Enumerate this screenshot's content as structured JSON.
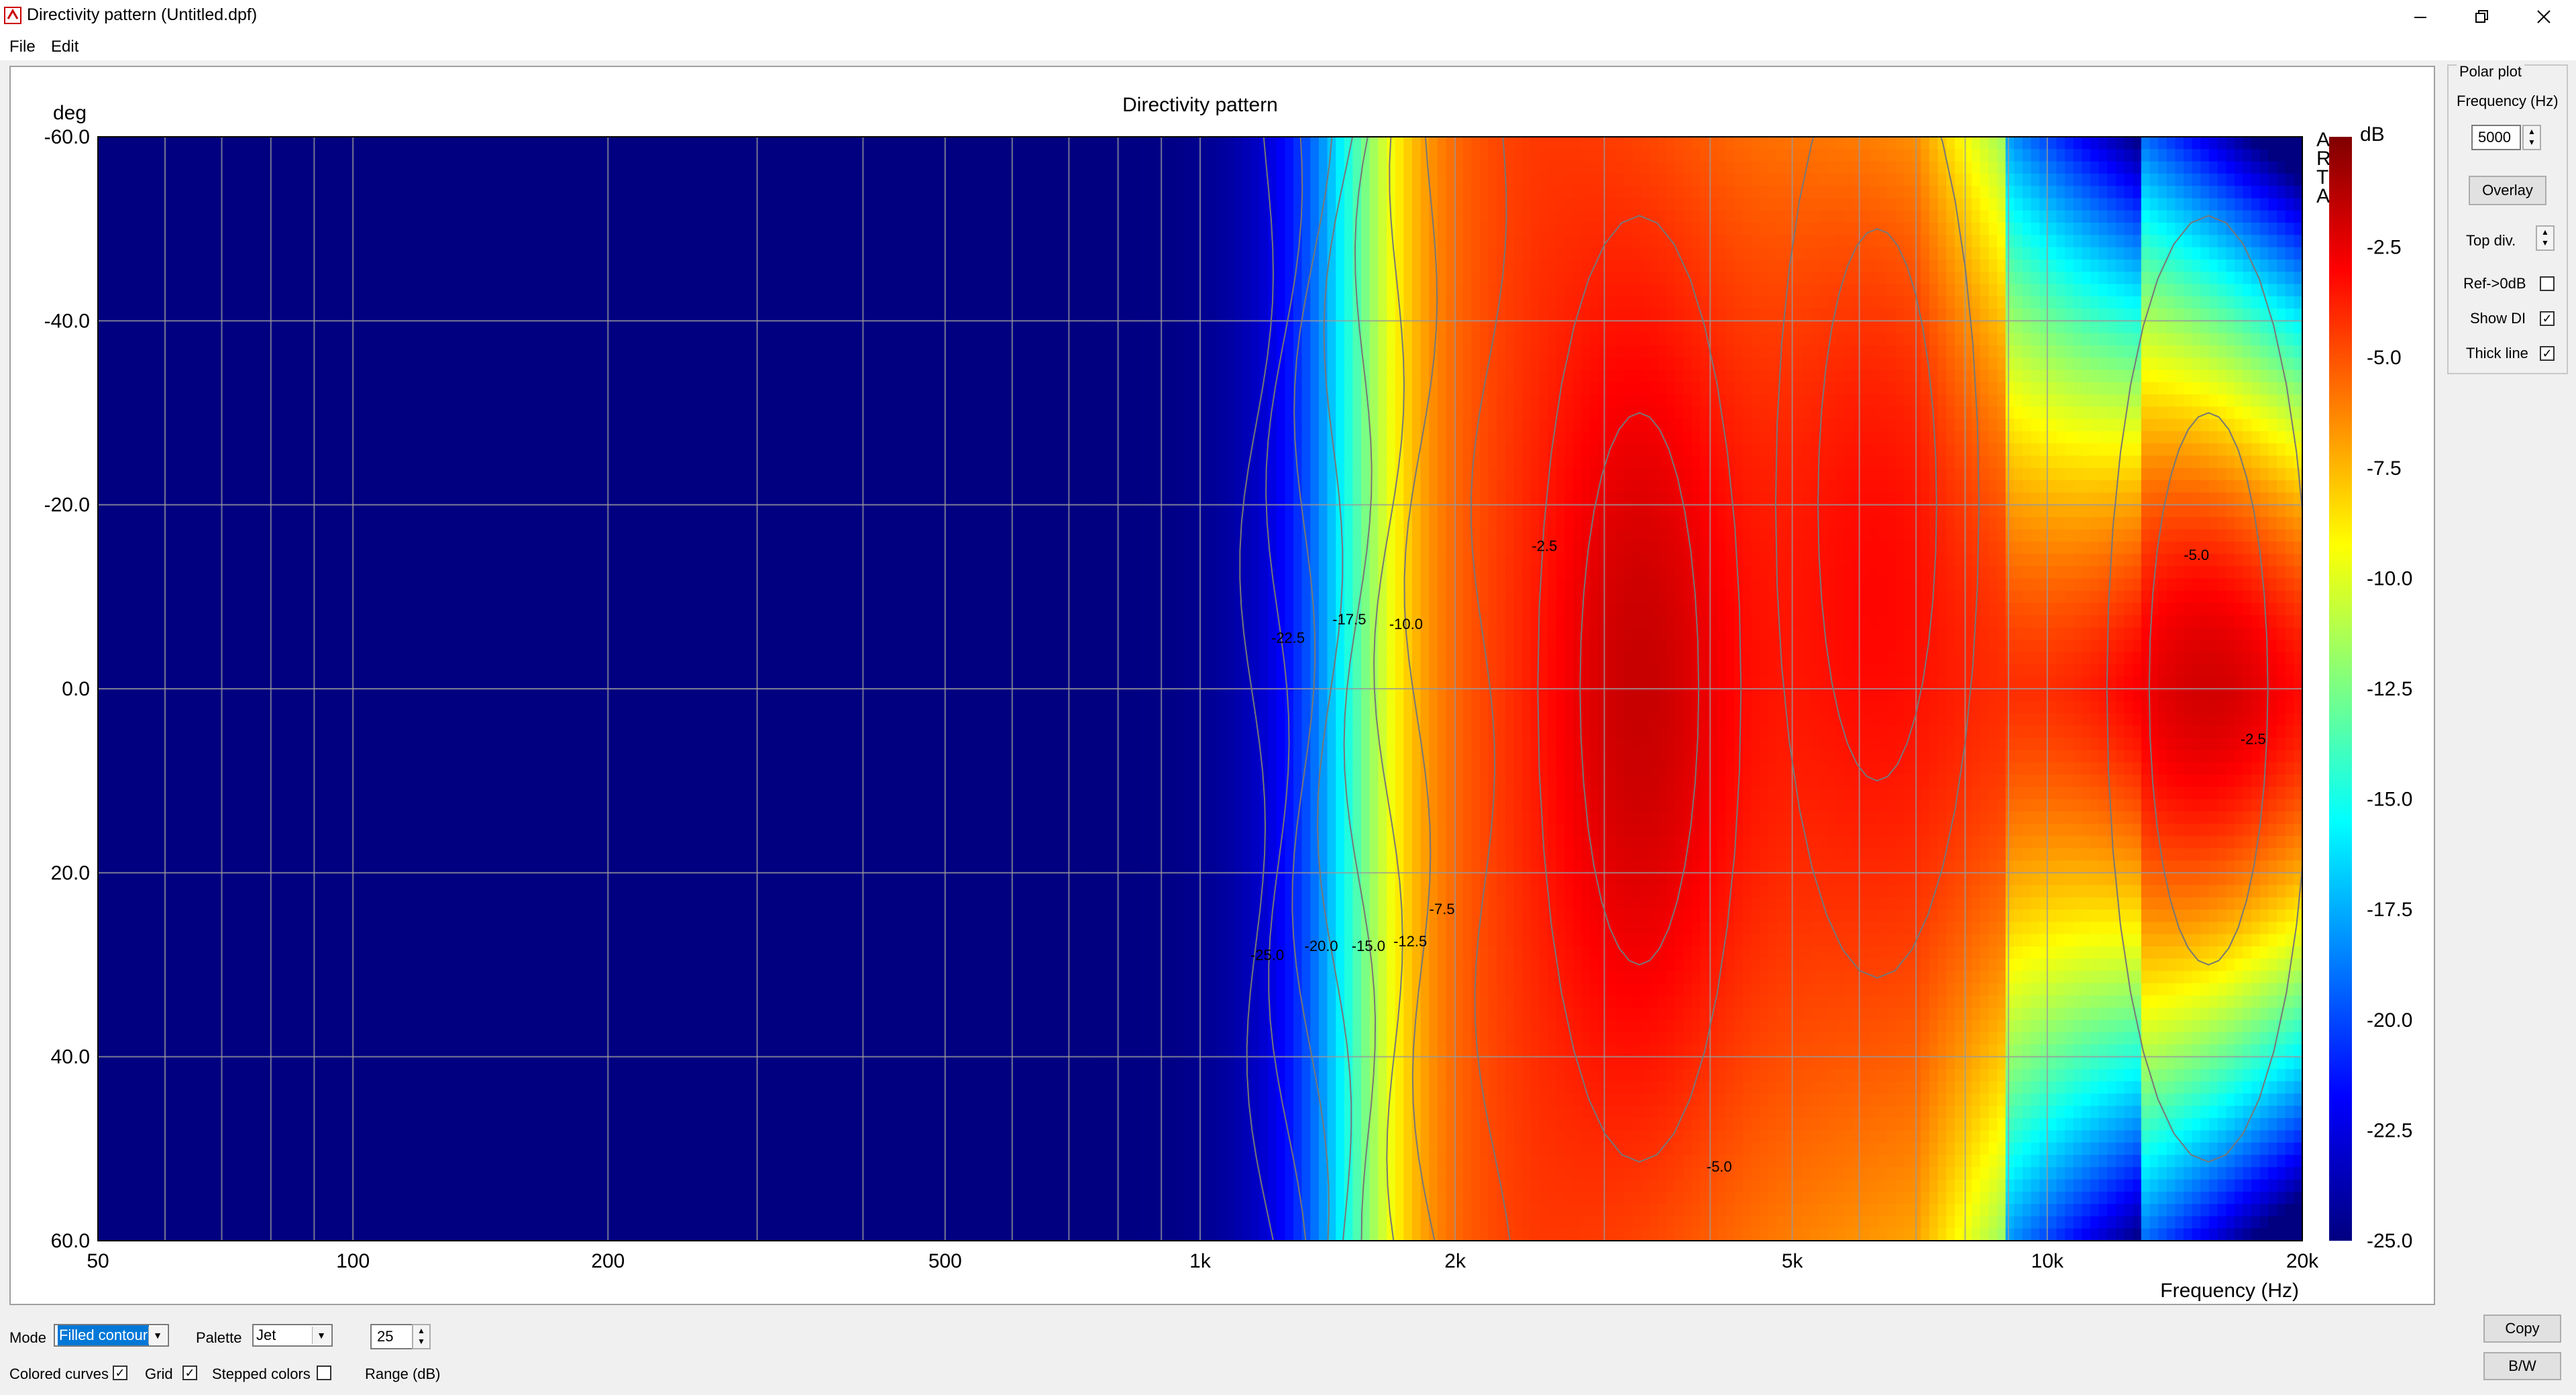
{
  "window": {
    "title": "Directivity pattern (Untitled.dpf)",
    "minimize_icon": "minimize-icon",
    "restore_icon": "restore-icon",
    "close_icon": "close-icon"
  },
  "menu": {
    "items": [
      "File",
      "Edit"
    ]
  },
  "chart_data": {
    "type": "heatmap",
    "title": "Directivity pattern",
    "xlabel": "Frequency (Hz)",
    "ylabel": "deg",
    "colorbar_label": "dB",
    "watermark": "ARTA",
    "x_scale": "log",
    "xlim": [
      50,
      20000
    ],
    "ylim": [
      -60,
      60
    ],
    "x_ticks": [
      50,
      100,
      200,
      500,
      1000,
      2000,
      5000,
      10000,
      20000
    ],
    "x_tick_labels": [
      "50",
      "100",
      "200",
      "500",
      "1k",
      "2k",
      "5k",
      "10k",
      "20k"
    ],
    "y_ticks": [
      -60,
      -40,
      -20,
      0,
      20,
      40,
      60
    ],
    "y_tick_labels": [
      "-60.0",
      "-40.0",
      "-20.0",
      "0.0",
      "20.0",
      "40.0",
      "60.0"
    ],
    "colorbar_ticks": [
      -2.5,
      -5.0,
      -7.5,
      -10.0,
      -12.5,
      -15.0,
      -17.5,
      -20.0,
      -22.5,
      -25.0
    ],
    "colorbar_tick_labels": [
      "-2.5",
      "-5.0",
      "-7.5",
      "-10.0",
      "-12.5",
      "-15.0",
      "-17.5",
      "-20.0",
      "-22.5",
      "-25.0"
    ],
    "zlim": [
      -25,
      0
    ],
    "palette": "Jet",
    "grid": true,
    "contour_labels": [
      {
        "text": "-22.5",
        "freq": 1270,
        "deg": -5
      },
      {
        "text": "-17.5",
        "freq": 1500,
        "deg": -7
      },
      {
        "text": "-10.0",
        "freq": 1750,
        "deg": -6.5
      },
      {
        "text": "-2.5",
        "freq": 2550,
        "deg": -15
      },
      {
        "text": "-5.0",
        "freq": 15000,
        "deg": -14
      },
      {
        "text": "-2.5",
        "freq": 17500,
        "deg": 6
      },
      {
        "text": "-25.0",
        "freq": 1200,
        "deg": 29.5
      },
      {
        "text": "-20.0",
        "freq": 1390,
        "deg": 28.5
      },
      {
        "text": "-15.0",
        "freq": 1580,
        "deg": 28.5
      },
      {
        "text": "-12.5",
        "freq": 1770,
        "deg": 28
      },
      {
        "text": "-7.5",
        "freq": 1930,
        "deg": 24.5
      },
      {
        "text": "-5.0",
        "freq": 4100,
        "deg": 52.5
      }
    ],
    "response_peaks": [
      {
        "freq": 3300,
        "deg": 0,
        "level_db": 0.5
      },
      {
        "freq": 6300,
        "deg": -20,
        "level_db": -2.0
      },
      {
        "freq": 15500,
        "deg": 0,
        "level_db": 0.0
      }
    ]
  },
  "polar": {
    "group_title": "Polar plot",
    "frequency_label": "Frequency (Hz)",
    "frequency_value": "5000",
    "overlay_label": "Overlay",
    "topdiv_label": "Top div.",
    "ref_label": "Ref->0dB",
    "ref_checked": false,
    "showdi_label": "Show DI",
    "showdi_checked": true,
    "thick_label": "Thick line",
    "thick_checked": true
  },
  "bottom": {
    "mode_label": "Mode",
    "mode_value": "Filled contour",
    "palette_label": "Palette",
    "palette_value": "Jet",
    "range_value": "25",
    "colored_label": "Colored curves",
    "colored_checked": true,
    "grid_label": "Grid",
    "grid_checked": true,
    "stepped_label": "Stepped colors",
    "stepped_checked": false,
    "range_label": "Range (dB)",
    "copy_label": "Copy",
    "bw_label": "B/W"
  }
}
